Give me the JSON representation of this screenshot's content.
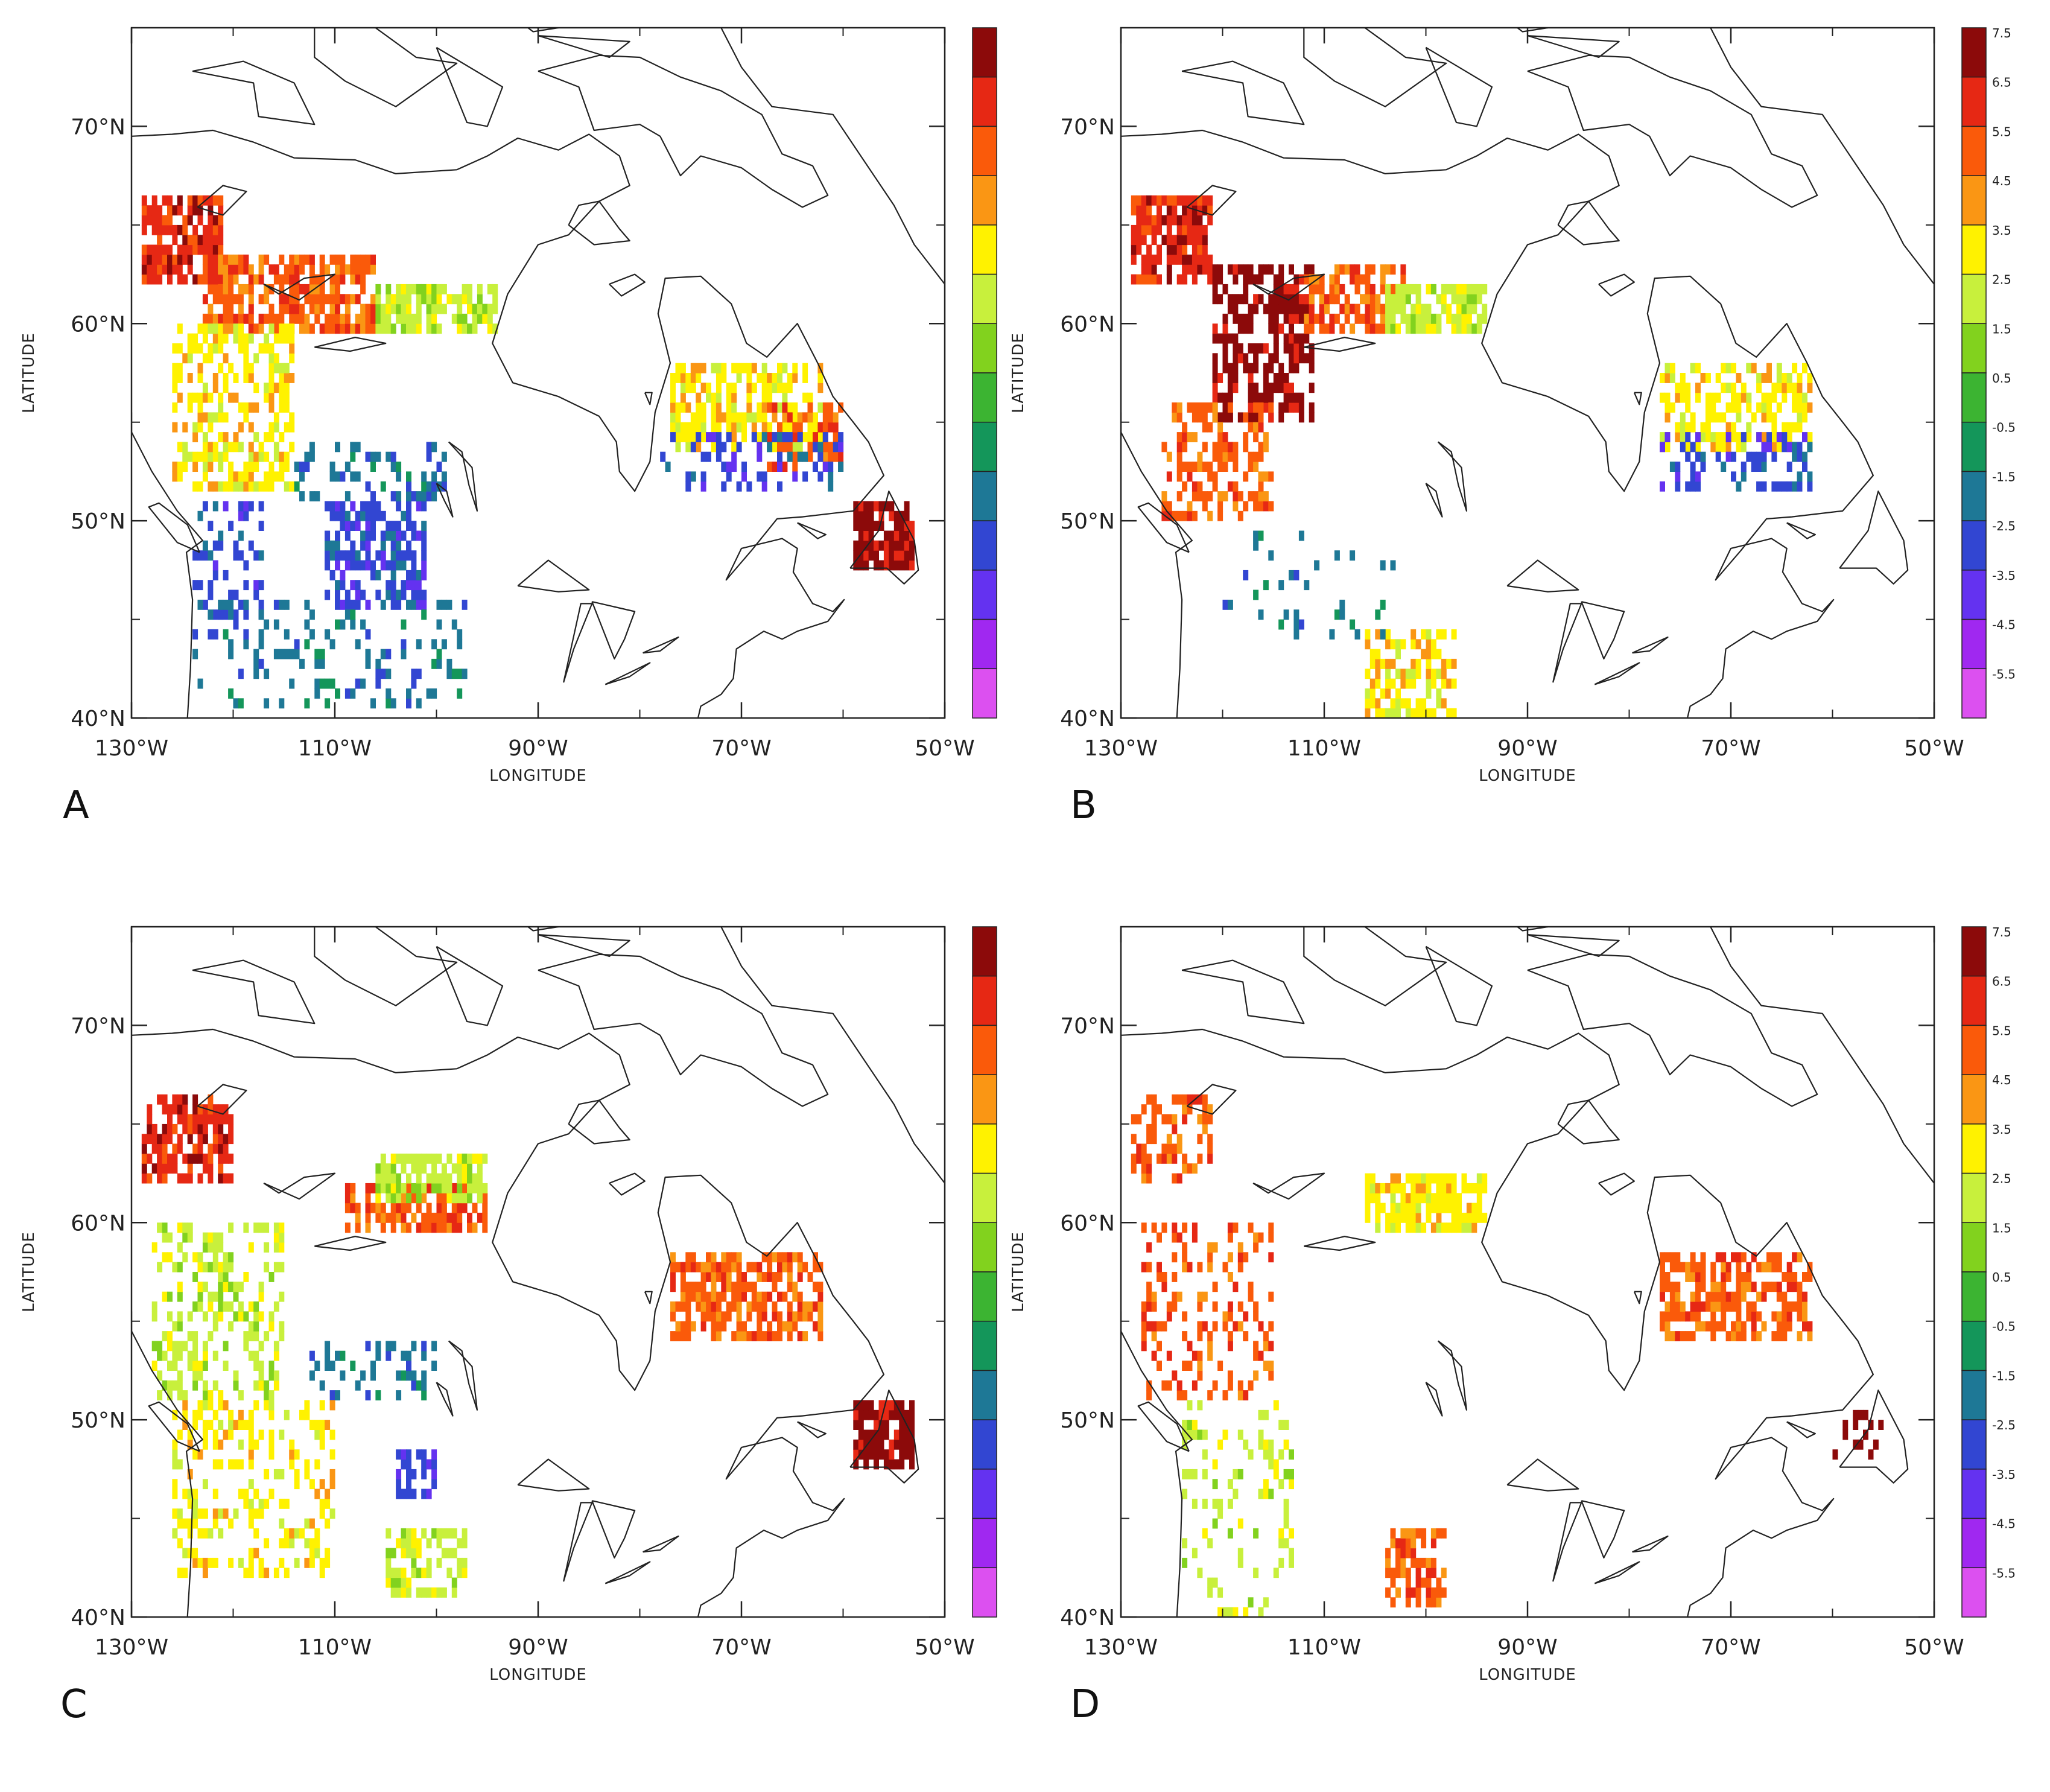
{
  "figure": {
    "panels": [
      {
        "letter": "A",
        "show_colorbar_labels": false
      },
      {
        "letter": "B",
        "show_colorbar_labels": true
      },
      {
        "letter": "C",
        "show_colorbar_labels": false
      },
      {
        "letter": "D",
        "show_colorbar_labels": true
      }
    ],
    "x_axis_title": "LONGITUDE",
    "y_axis_title": "LATITUDE",
    "lon_ticks": [
      {
        "value": -130,
        "label": "130°W"
      },
      {
        "value": -110,
        "label": "110°W"
      },
      {
        "value": -90,
        "label": "90°W"
      },
      {
        "value": -70,
        "label": "70°W"
      },
      {
        "value": -50,
        "label": "50°W"
      }
    ],
    "lat_ticks": [
      {
        "value": 40,
        "label": "40°N"
      },
      {
        "value": 50,
        "label": "50°N"
      },
      {
        "value": 60,
        "label": "60°N"
      },
      {
        "value": 70,
        "label": "70°N"
      }
    ],
    "lon_range": [
      -130,
      -50
    ],
    "lat_range": [
      40,
      75
    ]
  },
  "colorbar": {
    "labels": [
      "7.5",
      "6.5",
      "5.5",
      "4.5",
      "3.5",
      "2.5",
      "1.5",
      "0.5",
      "-0.5",
      "-1.5",
      "-2.5",
      "-3.5",
      "-4.5",
      "-5.5"
    ],
    "colors": [
      "#8c0a0a",
      "#e62814",
      "#fa5a0a",
      "#fa9614",
      "#fff200",
      "#c8f03c",
      "#82d21e",
      "#3cb432",
      "#14965a",
      "#1e7896",
      "#3246d2",
      "#6432f0",
      "#a028f0",
      "#dc50f0"
    ]
  },
  "chart_data": [
    {
      "type": "heatmap",
      "panel": "A",
      "xlabel": "LONGITUDE",
      "ylabel": "LATITUDE",
      "xlim": [
        -130,
        -50
      ],
      "ylim": [
        40,
        75
      ],
      "regions": [
        {
          "lon": [
            -129,
            -121
          ],
          "lat": [
            62,
            66.5
          ],
          "level": "6.5",
          "density": 0.75
        },
        {
          "lon": [
            -123,
            -106
          ],
          "lat": [
            59.5,
            63.5
          ],
          "level": "5.5",
          "density": 0.7
        },
        {
          "lon": [
            -106,
            -94
          ],
          "lat": [
            59.5,
            62
          ],
          "level": "2.5",
          "density": 0.8
        },
        {
          "lon": [
            -126,
            -114
          ],
          "lat": [
            51.5,
            60
          ],
          "level": "3.5",
          "density": 0.55
        },
        {
          "lon": [
            -77,
            -62
          ],
          "lat": [
            53.5,
            58
          ],
          "level": "3.5",
          "density": 0.6
        },
        {
          "lon": [
            -68,
            -60
          ],
          "lat": [
            52.5,
            56
          ],
          "level": "5.5",
          "density": 0.5
        },
        {
          "lon": [
            -59,
            -53
          ],
          "lat": [
            47.5,
            51
          ],
          "level": "7.5",
          "density": 0.8
        },
        {
          "lon": [
            -111,
            -101
          ],
          "lat": [
            45.5,
            51
          ],
          "level": "-2.5",
          "density": 0.55
        },
        {
          "lon": [
            -124,
            -117
          ],
          "lat": [
            45,
            51
          ],
          "level": "-2.5",
          "density": 0.35
        },
        {
          "lon": [
            -114,
            -99
          ],
          "lat": [
            51,
            54
          ],
          "level": "-1.5",
          "density": 0.35
        },
        {
          "lon": [
            -124,
            -97
          ],
          "lat": [
            40.5,
            46
          ],
          "level": "-1.5",
          "density": 0.22
        },
        {
          "lon": [
            -78,
            -60
          ],
          "lat": [
            51.5,
            54.5
          ],
          "level": "-2.5",
          "density": 0.3
        }
      ]
    },
    {
      "type": "heatmap",
      "panel": "B",
      "xlabel": "LONGITUDE",
      "ylabel": "LATITUDE",
      "xlim": [
        -130,
        -50
      ],
      "ylim": [
        40,
        75
      ],
      "regions": [
        {
          "lon": [
            -129,
            -121
          ],
          "lat": [
            62,
            66.5
          ],
          "level": "6.5",
          "density": 0.75
        },
        {
          "lon": [
            -121,
            -111
          ],
          "lat": [
            55,
            63
          ],
          "level": "7.5",
          "density": 0.6
        },
        {
          "lon": [
            -112,
            -102
          ],
          "lat": [
            59.5,
            63
          ],
          "level": "5.5",
          "density": 0.7
        },
        {
          "lon": [
            -104,
            -94
          ],
          "lat": [
            59.5,
            62
          ],
          "level": "2.5",
          "density": 0.8
        },
        {
          "lon": [
            -126,
            -115
          ],
          "lat": [
            50,
            56
          ],
          "level": "5.5",
          "density": 0.45
        },
        {
          "lon": [
            -77,
            -62
          ],
          "lat": [
            53.5,
            58
          ],
          "level": "3.5",
          "density": 0.55
        },
        {
          "lon": [
            -77,
            -62
          ],
          "lat": [
            51.5,
            54.5
          ],
          "level": "-2.5",
          "density": 0.3
        },
        {
          "lon": [
            -106,
            -97
          ],
          "lat": [
            40,
            44.5
          ],
          "level": "3.5",
          "density": 0.55
        },
        {
          "lon": [
            -120,
            -103
          ],
          "lat": [
            44,
            50
          ],
          "level": "-1.5",
          "density": 0.1
        }
      ]
    },
    {
      "type": "heatmap",
      "panel": "C",
      "xlabel": "LONGITUDE",
      "ylabel": "LATITUDE",
      "xlim": [
        -130,
        -50
      ],
      "ylim": [
        40,
        75
      ],
      "regions": [
        {
          "lon": [
            -129,
            -120
          ],
          "lat": [
            62,
            66.5
          ],
          "level": "6.5",
          "density": 0.7
        },
        {
          "lon": [
            -109,
            -95
          ],
          "lat": [
            59.5,
            62
          ],
          "level": "5.5",
          "density": 0.65
        },
        {
          "lon": [
            -106,
            -95
          ],
          "lat": [
            61,
            63.5
          ],
          "level": "2.5",
          "density": 0.7
        },
        {
          "lon": [
            -128,
            -115
          ],
          "lat": [
            51,
            60
          ],
          "level": "2.5",
          "density": 0.4
        },
        {
          "lon": [
            -77,
            -62
          ],
          "lat": [
            54,
            58.5
          ],
          "level": "5.5",
          "density": 0.65
        },
        {
          "lon": [
            -59,
            -53
          ],
          "lat": [
            47.5,
            51
          ],
          "level": "7.5",
          "density": 0.8
        },
        {
          "lon": [
            -104,
            -100
          ],
          "lat": [
            46,
            48.5
          ],
          "level": "-2.5",
          "density": 0.7
        },
        {
          "lon": [
            -113,
            -100
          ],
          "lat": [
            51,
            54
          ],
          "level": "-1.5",
          "density": 0.3
        },
        {
          "lon": [
            -105,
            -97
          ],
          "lat": [
            41,
            44.5
          ],
          "level": "2.5",
          "density": 0.5
        },
        {
          "lon": [
            -126,
            -110
          ],
          "lat": [
            42,
            51
          ],
          "level": "3.5",
          "density": 0.3
        }
      ]
    },
    {
      "type": "heatmap",
      "panel": "D",
      "xlabel": "LONGITUDE",
      "ylabel": "LATITUDE",
      "xlim": [
        -130,
        -50
      ],
      "ylim": [
        40,
        75
      ],
      "regions": [
        {
          "lon": [
            -129,
            -121
          ],
          "lat": [
            62,
            66.5
          ],
          "level": "5.5",
          "density": 0.45
        },
        {
          "lon": [
            -106,
            -94
          ],
          "lat": [
            59.5,
            62.5
          ],
          "level": "3.5",
          "density": 0.75
        },
        {
          "lon": [
            -128,
            -115
          ],
          "lat": [
            51,
            60
          ],
          "level": "5.5",
          "density": 0.3
        },
        {
          "lon": [
            -77,
            -62
          ],
          "lat": [
            54,
            58.5
          ],
          "level": "5.5",
          "density": 0.6
        },
        {
          "lon": [
            -104,
            -98
          ],
          "lat": [
            40.5,
            44.5
          ],
          "level": "5.5",
          "density": 0.6
        },
        {
          "lon": [
            -124,
            -113
          ],
          "lat": [
            40,
            51
          ],
          "level": "2.5",
          "density": 0.2
        },
        {
          "lon": [
            -60,
            -55
          ],
          "lat": [
            47.5,
            50.5
          ],
          "level": "7.5",
          "density": 0.35
        }
      ]
    }
  ]
}
